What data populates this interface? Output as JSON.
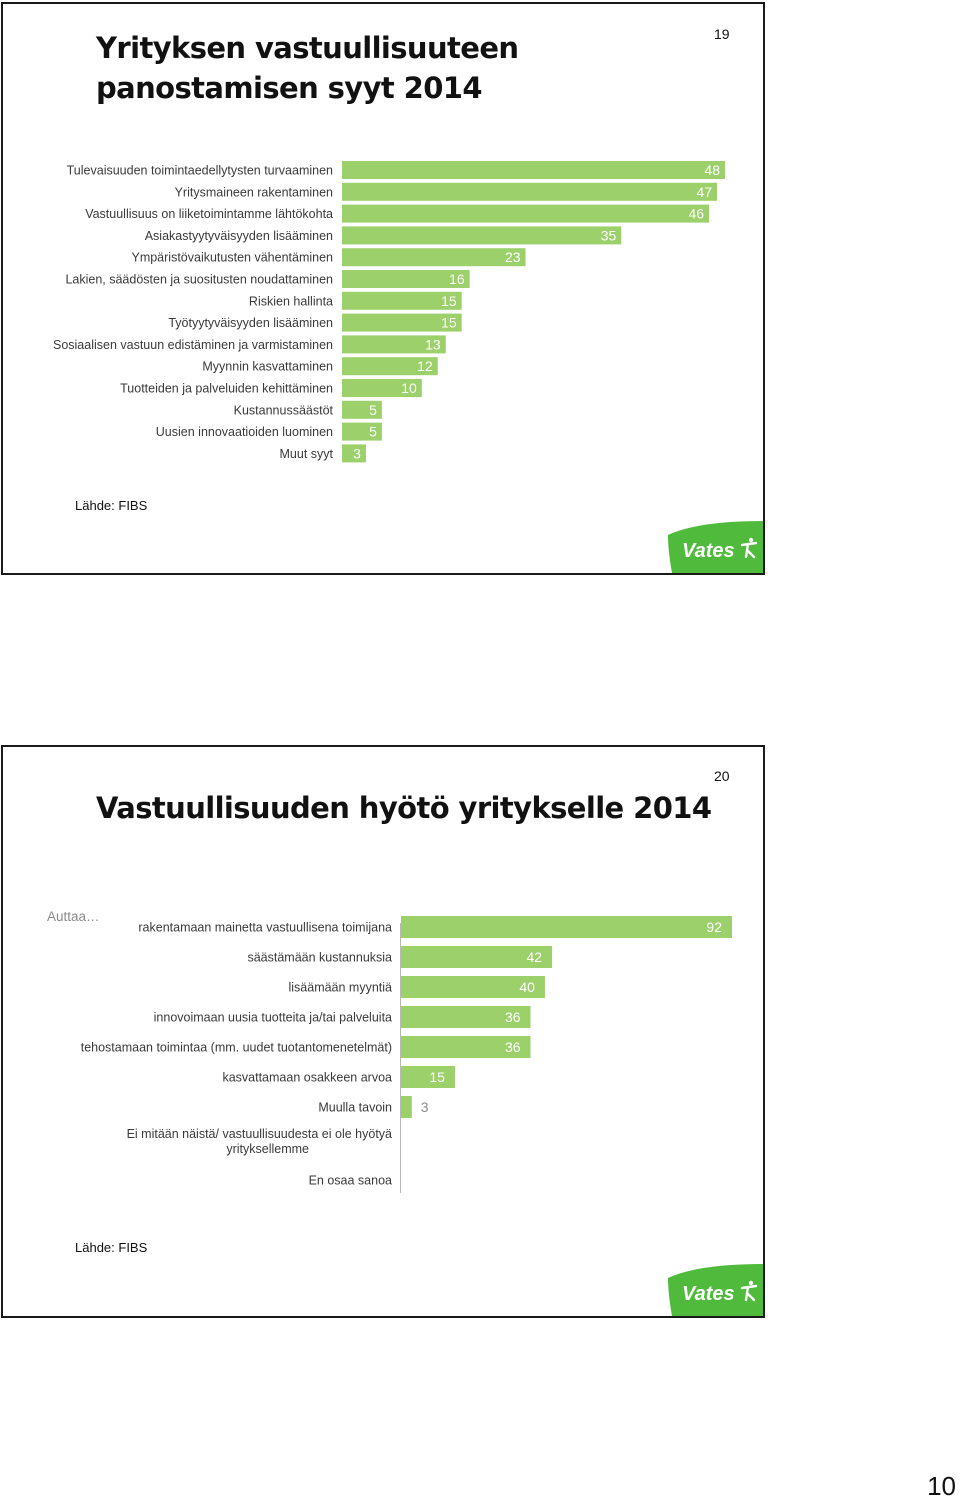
{
  "slides": [
    {
      "title": "Yrityksen vastuullisuuteen panostamisen syyt 2014",
      "slide_number": "19",
      "source": "Lähde: FIBS",
      "logo_text": "Vates"
    },
    {
      "title": "Vastuullisuuden hyötö yritykselle 2014",
      "slide_number": "20",
      "source": "Lähde: FIBS",
      "logo_text": "Vates"
    }
  ],
  "page_number": "10",
  "colors": {
    "bar": "#9cd06a",
    "logo": "#4fba3c",
    "frame": "#1a1a1a"
  },
  "chart_data": [
    {
      "type": "bar",
      "orientation": "horizontal",
      "categories": [
        "Tulevaisuuden toimintaedellytysten turvaaminen",
        "Yritysmaineen rakentaminen",
        "Vastuullisuus on liiketoimintamme lähtökohta",
        "Asiakastyytyväisyyden lisääminen",
        "Ympäristövaikutusten vähentäminen",
        "Lakien, säädösten ja suositusten noudattaminen",
        "Riskien hallinta",
        "Työtyytyväisyyden lisääminen",
        "Sosiaalisen vastuun edistäminen ja varmistaminen",
        "Myynnin kasvattaminen",
        "Tuotteiden ja palveluiden kehittäminen",
        "Kustannussäästöt",
        "Uusien innovaatioiden luominen",
        "Muut syyt"
      ],
      "values": [
        48,
        47,
        46,
        35,
        23,
        16,
        15,
        15,
        13,
        12,
        10,
        5,
        5,
        3
      ],
      "xlim": [
        0,
        48
      ]
    },
    {
      "type": "bar",
      "orientation": "horizontal",
      "category_prefix": "Auttaa…",
      "categories": [
        "rakentamaan mainetta vastuullisena toimijana",
        "säästämään kustannuksia",
        "lisäämään myyntiä",
        "innovoimaan uusia tuotteita ja/tai palveluita",
        "tehostamaan toimintaa (mm. uudet tuotantomenetelmät)",
        "kasvattamaan osakkeen arvoa",
        "Muulla tavoin",
        "Ei mitään näistä/ vastuullisuudesta ei ole hyötyä yrityksellemme",
        "En osaa sanoa"
      ],
      "values": [
        92,
        42,
        40,
        36,
        36,
        15,
        3,
        null,
        null
      ],
      "xlim": [
        0,
        92
      ]
    }
  ]
}
